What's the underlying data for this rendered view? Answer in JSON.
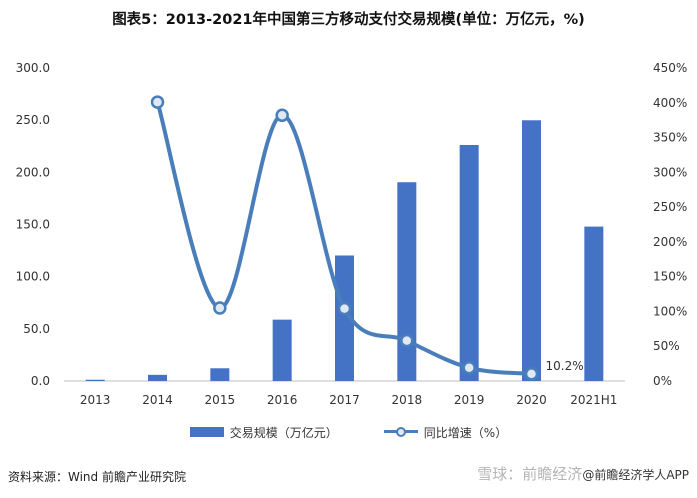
{
  "title": "图表5：2013-2021年中国第三方移动支付交易规模(单位：万亿元，%)",
  "source": "资料来源：Wind 前瞻产业研究院",
  "watermark": {
    "text": "雪球：前瞻经济",
    "app": "@前瞻经济学人APP"
  },
  "colors": {
    "bar": "#4472c4",
    "line": "#4a7ebb",
    "marker_fill": "#dfe8f3"
  },
  "chart_data": {
    "type": "bar",
    "categories": [
      "2013",
      "2014",
      "2015",
      "2016",
      "2017",
      "2018",
      "2019",
      "2020",
      "2021H1"
    ],
    "series": [
      {
        "name": "交易规模（万亿元）",
        "type": "bar",
        "axis": "left",
        "values": [
          1.2,
          5.9,
          12.2,
          58.8,
          120.3,
          190.5,
          226.2,
          249.9,
          148.0
        ]
      },
      {
        "name": "同比增速（%）",
        "type": "line",
        "axis": "right",
        "smooth": true,
        "values": [
          null,
          401,
          105,
          382,
          104,
          58,
          19,
          10.2,
          null
        ]
      }
    ],
    "y_left": {
      "ylim": [
        0,
        300
      ],
      "ticks": [
        "0.0",
        "50.0",
        "100.0",
        "150.0",
        "200.0",
        "250.0",
        "300.0"
      ]
    },
    "y_right": {
      "ylim": [
        0,
        450
      ],
      "ticks": [
        "0%",
        "50%",
        "100%",
        "150%",
        "200%",
        "250%",
        "300%",
        "350%",
        "400%",
        "450%"
      ]
    },
    "annotations": [
      {
        "category": "2020",
        "text": "10.2%"
      }
    ],
    "legend_position": "bottom",
    "grid": false
  }
}
